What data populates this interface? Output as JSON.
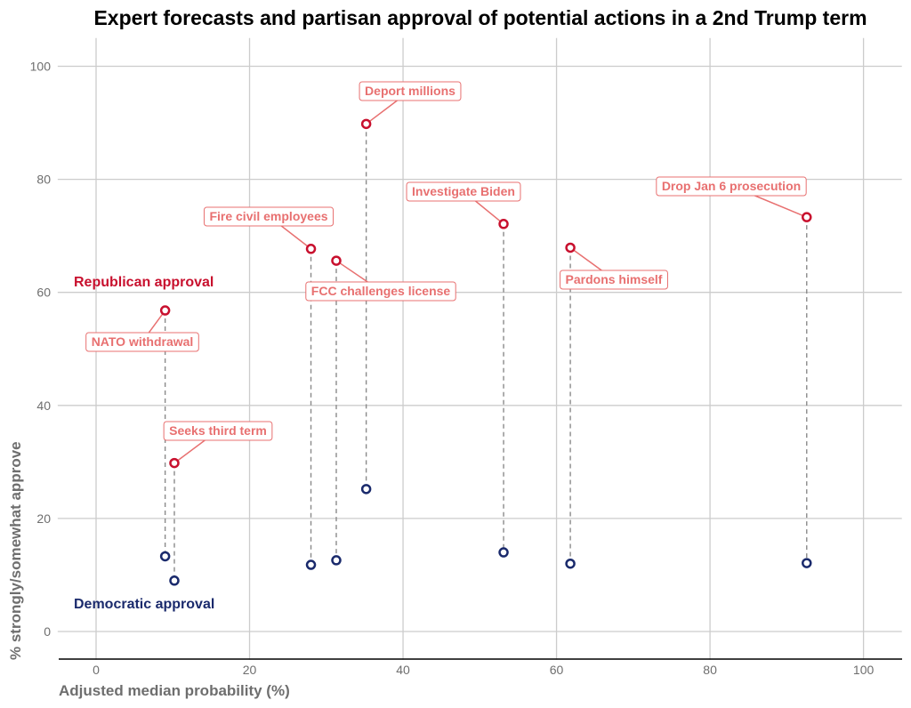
{
  "chart_data": {
    "type": "scatter",
    "title": "Expert forecasts and partisan approval of potential actions in a 2nd Trump term",
    "xlabel": "Adjusted median probability (%)",
    "ylabel": "% strongly/somewhat approve",
    "xlim": [
      -5,
      105
    ],
    "ylim": [
      -5,
      105
    ],
    "x_ticks": [
      0,
      20,
      40,
      60,
      80,
      100
    ],
    "y_ticks": [
      0,
      20,
      40,
      60,
      80,
      100
    ],
    "grid": true,
    "colors": {
      "republican": "#c8102e",
      "republican_label": "#e87070",
      "democratic": "#1a2a6c",
      "connector": "#8a8a8a"
    },
    "series_labels": {
      "republican": "Republican approval",
      "democratic": "Democratic approval"
    },
    "points": [
      {
        "label": "NATO withdrawal",
        "x": 9,
        "republican": 56.8,
        "democratic": 13.3
      },
      {
        "label": "Seeks third term",
        "x": 10.2,
        "republican": 29.8,
        "democratic": 9
      },
      {
        "label": "Fire civil employees",
        "x": 28,
        "republican": 67.7,
        "democratic": 11.8
      },
      {
        "label": "FCC challenges license",
        "x": 31.3,
        "republican": 65.6,
        "democratic": 12.6
      },
      {
        "label": "Deport millions",
        "x": 35.2,
        "republican": 89.8,
        "democratic": 25.2
      },
      {
        "label": "Investigate Biden",
        "x": 53.1,
        "republican": 72.1,
        "democratic": 14
      },
      {
        "label": "Pardons himself",
        "x": 61.8,
        "republican": 67.9,
        "democratic": 12
      },
      {
        "label": "Drop Jan 6 prosecution",
        "x": 92.6,
        "republican": 73.3,
        "democratic": 12.1
      }
    ]
  }
}
